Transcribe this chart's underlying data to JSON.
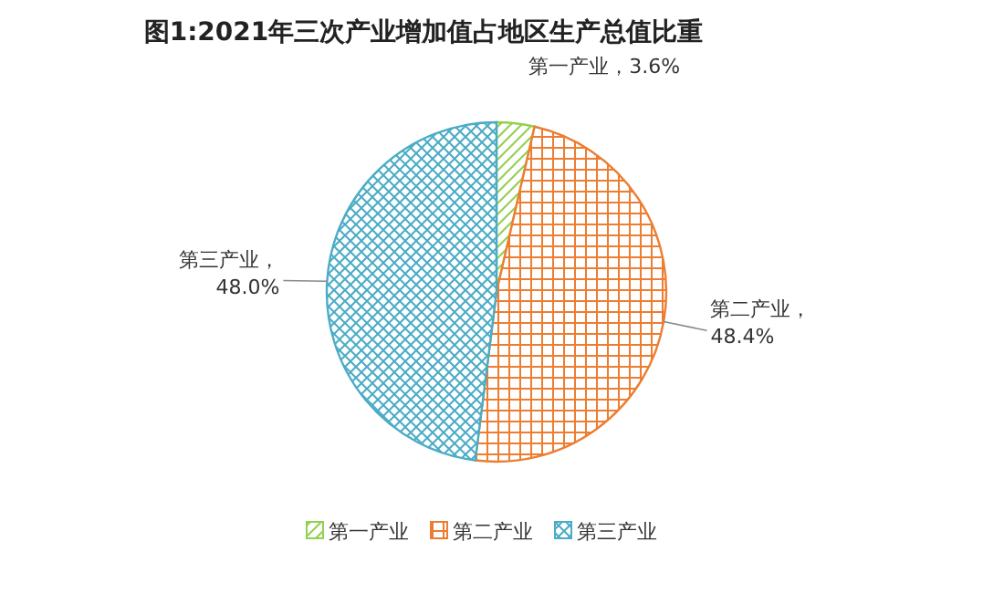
{
  "chart_data": {
    "type": "pie",
    "title": "图1:2021年三次产业增加值占地区生产总值比重",
    "categories": [
      "第一产业",
      "第二产业",
      "第三产业"
    ],
    "values": [
      3.6,
      48.4,
      48.0
    ],
    "colors": [
      "#92d050",
      "#ed7d31",
      "#4bacc6"
    ],
    "value_labels": [
      "第一产业，3.6%",
      "第二产业，\n48.4%",
      "第三产业，\n48.0%"
    ],
    "legend": "bottom"
  }
}
